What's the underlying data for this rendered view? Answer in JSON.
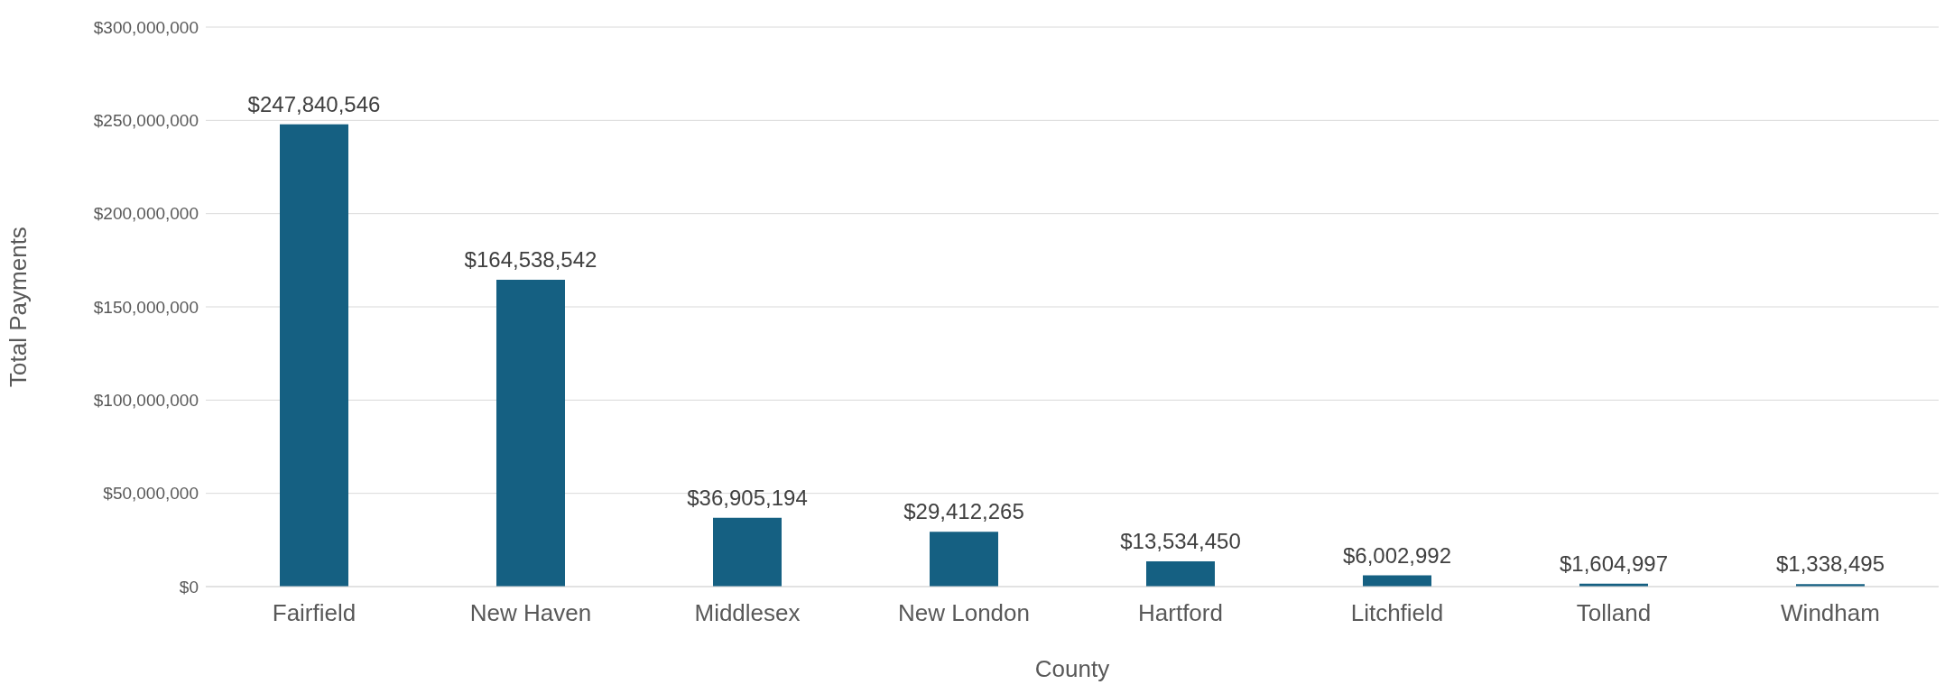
{
  "chart_data": {
    "type": "bar",
    "xlabel": "County",
    "ylabel": "Total Payments",
    "categories": [
      "Fairfield",
      "New Haven",
      "Middlesex",
      "New London",
      "Hartford",
      "Litchfield",
      "Tolland",
      "Windham"
    ],
    "values": [
      247840546,
      164538542,
      36905194,
      29412265,
      13534450,
      6002992,
      1604997,
      1338495
    ],
    "value_labels": [
      "$247,840,546",
      "$164,538,542",
      "$36,905,194",
      "$29,412,265",
      "$13,534,450",
      "$6,002,992",
      "$1,604,997",
      "$1,338,495"
    ],
    "color": "#156082",
    "ylim": [
      0,
      300000000
    ],
    "yticks": [
      {
        "value": 0,
        "label": "$0"
      },
      {
        "value": 50000000,
        "label": "$50,000,000"
      },
      {
        "value": 100000000,
        "label": "$100,000,000"
      },
      {
        "value": 150000000,
        "label": "$150,000,000"
      },
      {
        "value": 200000000,
        "label": "$200,000,000"
      },
      {
        "value": 250000000,
        "label": "$250,000,000"
      },
      {
        "value": 300000000,
        "label": "$300,000,000"
      }
    ],
    "grid": "y"
  }
}
